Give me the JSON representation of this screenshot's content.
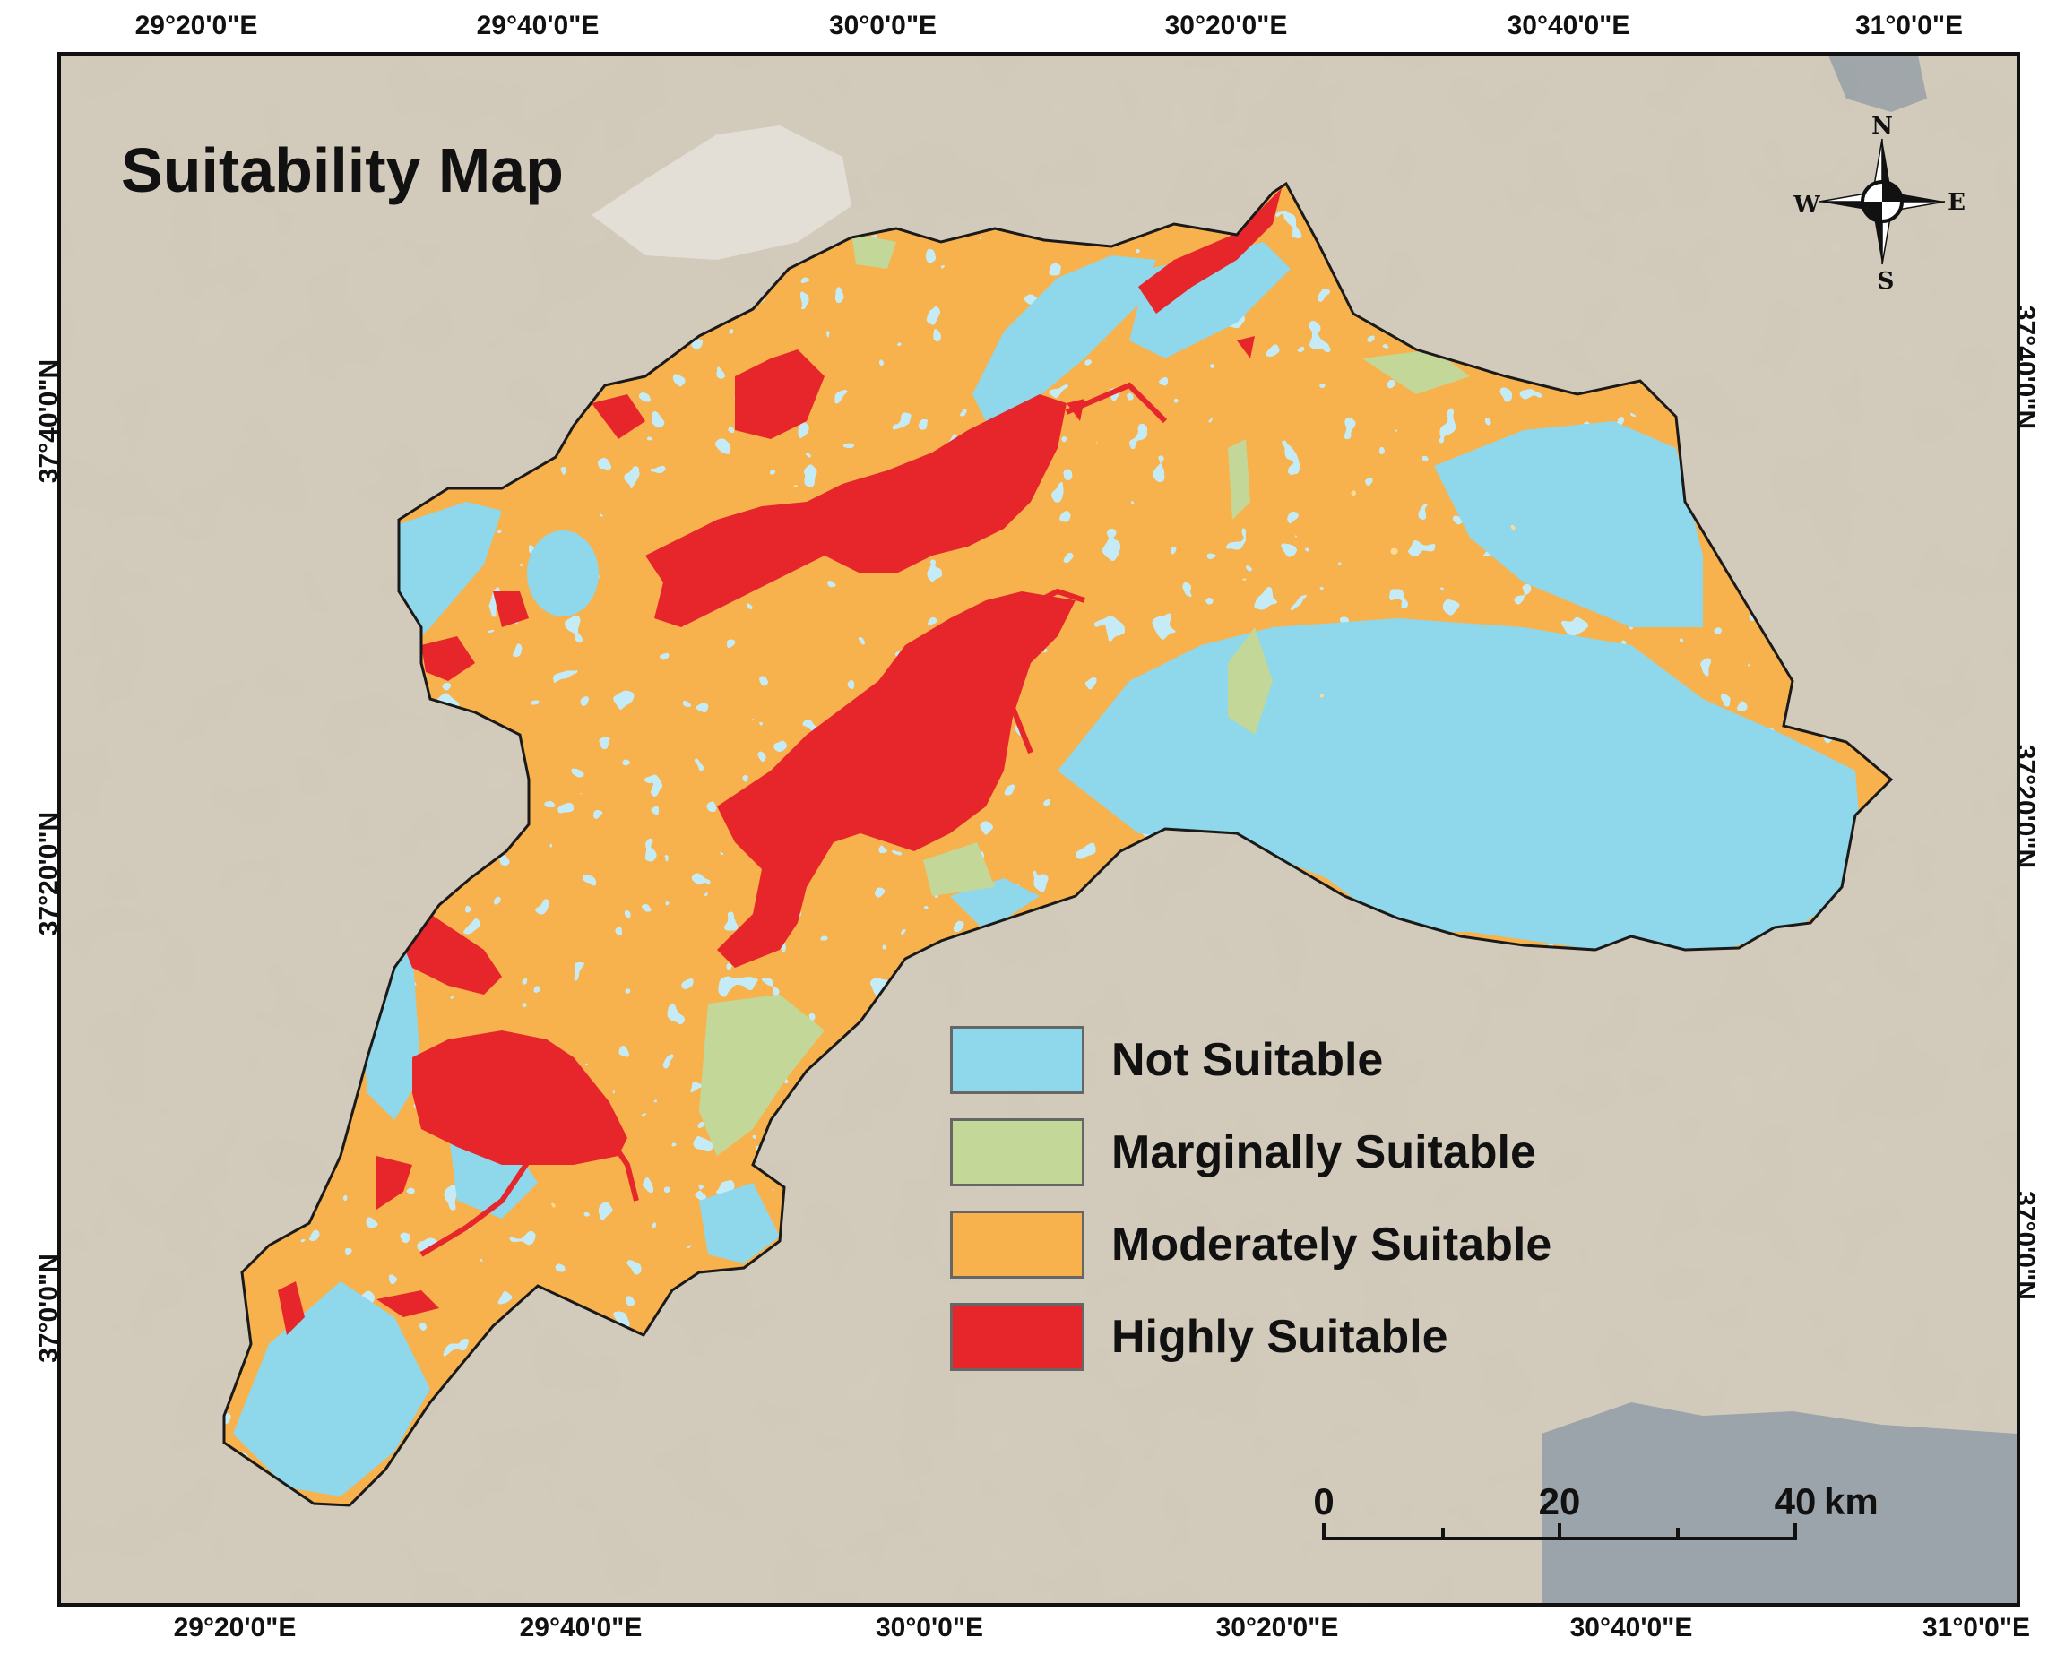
{
  "map": {
    "title": "Suitability Map",
    "longitude_labels": [
      "29°20'0\"E",
      "29°40'0\"E",
      "30°0'0\"E",
      "30°20'0\"E",
      "30°40'0\"E",
      "31°0'0\"E"
    ],
    "latitude_labels": [
      "37°40'0\"N",
      "37°20'0\"N",
      "37°0'0\"N"
    ],
    "legend": [
      {
        "label": "Not Suitable",
        "color": "#8fd7ea"
      },
      {
        "label": "Marginally Suitable",
        "color": "#c3d898"
      },
      {
        "label": "Moderately Suitable",
        "color": "#f7b24e"
      },
      {
        "label": "Highly Suitable",
        "color": "#e6262a"
      }
    ],
    "scale_bar": {
      "labels": [
        "0",
        "20",
        "40"
      ],
      "unit": "km"
    },
    "north_arrow": {
      "n": "N",
      "s": "S",
      "e": "E",
      "w": "W"
    }
  }
}
